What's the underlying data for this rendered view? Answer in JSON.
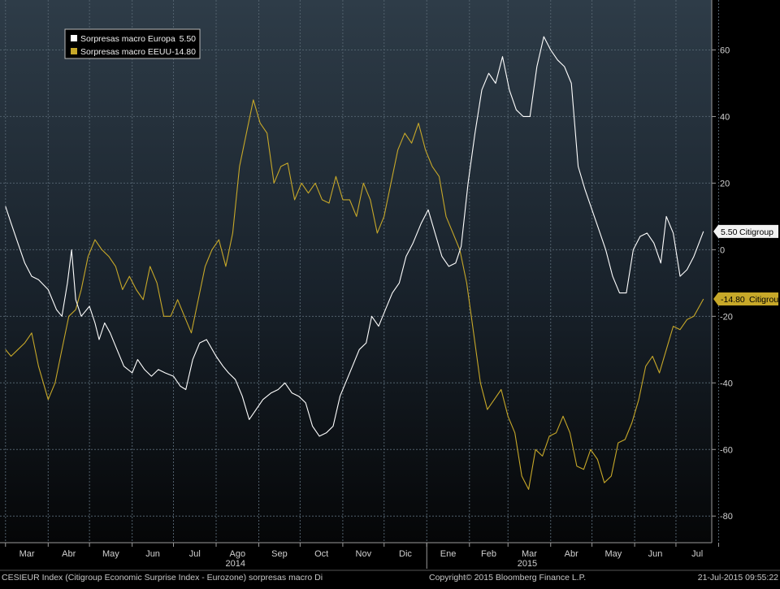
{
  "chart_data": {
    "type": "line",
    "ylim": [
      -88,
      75
    ],
    "yticks": [
      60,
      40,
      20,
      0,
      -20,
      -40,
      -60,
      -80
    ],
    "grid": true,
    "legend_position": "top-left",
    "x_month_labels": [
      "Mar",
      "Abr",
      "May",
      "Jun",
      "Jul",
      "Ago",
      "Sep",
      "Oct",
      "Nov",
      "Dic",
      "Ene",
      "Feb",
      "Mar",
      "Abr",
      "May",
      "Jun",
      "Jul"
    ],
    "year_labels": [
      "2014",
      "2015"
    ],
    "series": [
      {
        "name": "Sorpresas macro Europa",
        "legend_value": "5.50",
        "tag_value": "5.50",
        "tag_text": "Citigroup",
        "color": "#ffffff",
        "points": [
          [
            "2014-03-01",
            13
          ],
          [
            "2014-03-05",
            8
          ],
          [
            "2014-03-10",
            2
          ],
          [
            "2014-03-15",
            -4
          ],
          [
            "2014-03-20",
            -8
          ],
          [
            "2014-03-25",
            -9
          ],
          [
            "2014-04-01",
            -12
          ],
          [
            "2014-04-07",
            -18
          ],
          [
            "2014-04-11",
            -20
          ],
          [
            "2014-04-15",
            -10
          ],
          [
            "2014-04-18",
            0
          ],
          [
            "2014-04-21",
            -15
          ],
          [
            "2014-04-25",
            -20
          ],
          [
            "2014-05-01",
            -17
          ],
          [
            "2014-05-05",
            -22
          ],
          [
            "2014-05-08",
            -27
          ],
          [
            "2014-05-12",
            -22
          ],
          [
            "2014-05-16",
            -25
          ],
          [
            "2014-05-21",
            -30
          ],
          [
            "2014-05-26",
            -35
          ],
          [
            "2014-06-01",
            -37
          ],
          [
            "2014-06-05",
            -33
          ],
          [
            "2014-06-10",
            -36
          ],
          [
            "2014-06-15",
            -38
          ],
          [
            "2014-06-20",
            -36
          ],
          [
            "2014-06-25",
            -37
          ],
          [
            "2014-07-01",
            -38
          ],
          [
            "2014-07-06",
            -41
          ],
          [
            "2014-07-10",
            -42
          ],
          [
            "2014-07-15",
            -33
          ],
          [
            "2014-07-20",
            -28
          ],
          [
            "2014-07-25",
            -27
          ],
          [
            "2014-08-01",
            -32
          ],
          [
            "2014-08-06",
            -35
          ],
          [
            "2014-08-10",
            -37
          ],
          [
            "2014-08-15",
            -39
          ],
          [
            "2014-08-20",
            -44
          ],
          [
            "2014-08-25",
            -51
          ],
          [
            "2014-08-30",
            -48
          ],
          [
            "2014-09-04",
            -45
          ],
          [
            "2014-09-10",
            -43
          ],
          [
            "2014-09-15",
            -42
          ],
          [
            "2014-09-20",
            -40
          ],
          [
            "2014-09-25",
            -43
          ],
          [
            "2014-09-30",
            -44
          ],
          [
            "2014-10-05",
            -46
          ],
          [
            "2014-10-10",
            -53
          ],
          [
            "2014-10-15",
            -56
          ],
          [
            "2014-10-20",
            -55
          ],
          [
            "2014-10-25",
            -53
          ],
          [
            "2014-10-30",
            -44
          ],
          [
            "2014-11-03",
            -40
          ],
          [
            "2014-11-08",
            -35
          ],
          [
            "2014-11-13",
            -30
          ],
          [
            "2014-11-18",
            -28
          ],
          [
            "2014-11-22",
            -20
          ],
          [
            "2014-11-27",
            -23
          ],
          [
            "2014-12-02",
            -18
          ],
          [
            "2014-12-07",
            -13
          ],
          [
            "2014-12-12",
            -10
          ],
          [
            "2014-12-17",
            -2
          ],
          [
            "2014-12-22",
            2
          ],
          [
            "2014-12-28",
            8
          ],
          [
            "2015-01-02",
            12
          ],
          [
            "2015-01-07",
            5
          ],
          [
            "2015-01-12",
            -2
          ],
          [
            "2015-01-17",
            -5
          ],
          [
            "2015-01-22",
            -4
          ],
          [
            "2015-01-26",
            1
          ],
          [
            "2015-01-31",
            20
          ],
          [
            "2015-02-05",
            35
          ],
          [
            "2015-02-10",
            48
          ],
          [
            "2015-02-15",
            53
          ],
          [
            "2015-02-20",
            50
          ],
          [
            "2015-02-25",
            58
          ],
          [
            "2015-03-02",
            48
          ],
          [
            "2015-03-07",
            42
          ],
          [
            "2015-03-12",
            40
          ],
          [
            "2015-03-17",
            40
          ],
          [
            "2015-03-22",
            55
          ],
          [
            "2015-03-27",
            64
          ],
          [
            "2015-04-01",
            60
          ],
          [
            "2015-04-06",
            57
          ],
          [
            "2015-04-11",
            55
          ],
          [
            "2015-04-16",
            50
          ],
          [
            "2015-04-21",
            25
          ],
          [
            "2015-04-26",
            18
          ],
          [
            "2015-05-01",
            12
          ],
          [
            "2015-05-06",
            6
          ],
          [
            "2015-05-11",
            0
          ],
          [
            "2015-05-16",
            -8
          ],
          [
            "2015-05-21",
            -13
          ],
          [
            "2015-05-26",
            -13
          ],
          [
            "2015-05-31",
            0
          ],
          [
            "2015-06-05",
            4
          ],
          [
            "2015-06-10",
            5
          ],
          [
            "2015-06-15",
            2
          ],
          [
            "2015-06-20",
            -4
          ],
          [
            "2015-06-24",
            10
          ],
          [
            "2015-06-29",
            5
          ],
          [
            "2015-07-04",
            -8
          ],
          [
            "2015-07-09",
            -6
          ],
          [
            "2015-07-14",
            -2
          ],
          [
            "2015-07-21",
            5.5
          ]
        ]
      },
      {
        "name": "Sorpresas macro EEUU",
        "legend_value": "-14.80",
        "tag_value": "-14.80",
        "tag_text": "Citigroup",
        "color": "#c7a829",
        "points": [
          [
            "2014-03-01",
            -30
          ],
          [
            "2014-03-05",
            -32
          ],
          [
            "2014-03-10",
            -30
          ],
          [
            "2014-03-15",
            -28
          ],
          [
            "2014-03-20",
            -25
          ],
          [
            "2014-03-25",
            -35
          ],
          [
            "2014-04-01",
            -45
          ],
          [
            "2014-04-06",
            -40
          ],
          [
            "2014-04-11",
            -30
          ],
          [
            "2014-04-16",
            -20
          ],
          [
            "2014-04-21",
            -18
          ],
          [
            "2014-04-25",
            -12
          ],
          [
            "2014-04-30",
            -2
          ],
          [
            "2014-05-05",
            3
          ],
          [
            "2014-05-10",
            0
          ],
          [
            "2014-05-15",
            -2
          ],
          [
            "2014-05-20",
            -5
          ],
          [
            "2014-05-25",
            -12
          ],
          [
            "2014-05-30",
            -8
          ],
          [
            "2014-06-04",
            -12
          ],
          [
            "2014-06-09",
            -15
          ],
          [
            "2014-06-14",
            -5
          ],
          [
            "2014-06-19",
            -10
          ],
          [
            "2014-06-24",
            -20
          ],
          [
            "2014-06-29",
            -20
          ],
          [
            "2014-07-04",
            -15
          ],
          [
            "2014-07-09",
            -20
          ],
          [
            "2014-07-14",
            -25
          ],
          [
            "2014-07-19",
            -15
          ],
          [
            "2014-07-24",
            -5
          ],
          [
            "2014-07-29",
            0
          ],
          [
            "2014-08-03",
            3
          ],
          [
            "2014-08-08",
            -5
          ],
          [
            "2014-08-13",
            5
          ],
          [
            "2014-08-18",
            25
          ],
          [
            "2014-08-23",
            35
          ],
          [
            "2014-08-28",
            45
          ],
          [
            "2014-09-02",
            38
          ],
          [
            "2014-09-07",
            35
          ],
          [
            "2014-09-12",
            20
          ],
          [
            "2014-09-17",
            25
          ],
          [
            "2014-09-22",
            26
          ],
          [
            "2014-09-27",
            15
          ],
          [
            "2014-10-02",
            20
          ],
          [
            "2014-10-07",
            17
          ],
          [
            "2014-10-12",
            20
          ],
          [
            "2014-10-17",
            15
          ],
          [
            "2014-10-22",
            14
          ],
          [
            "2014-10-27",
            22
          ],
          [
            "2014-11-01",
            15
          ],
          [
            "2014-11-06",
            15
          ],
          [
            "2014-11-11",
            10
          ],
          [
            "2014-11-16",
            20
          ],
          [
            "2014-11-21",
            15
          ],
          [
            "2014-11-26",
            5
          ],
          [
            "2014-12-01",
            10
          ],
          [
            "2014-12-06",
            20
          ],
          [
            "2014-12-11",
            30
          ],
          [
            "2014-12-16",
            35
          ],
          [
            "2014-12-21",
            32
          ],
          [
            "2014-12-26",
            38
          ],
          [
            "2014-12-31",
            30
          ],
          [
            "2015-01-05",
            25
          ],
          [
            "2015-01-10",
            22
          ],
          [
            "2015-01-15",
            10
          ],
          [
            "2015-01-20",
            5
          ],
          [
            "2015-01-25",
            0
          ],
          [
            "2015-01-30",
            -10
          ],
          [
            "2015-02-04",
            -25
          ],
          [
            "2015-02-09",
            -40
          ],
          [
            "2015-02-14",
            -48
          ],
          [
            "2015-02-19",
            -45
          ],
          [
            "2015-02-24",
            -42
          ],
          [
            "2015-03-01",
            -50
          ],
          [
            "2015-03-06",
            -55
          ],
          [
            "2015-03-11",
            -68
          ],
          [
            "2015-03-16",
            -72
          ],
          [
            "2015-03-21",
            -60
          ],
          [
            "2015-03-26",
            -62
          ],
          [
            "2015-03-31",
            -56
          ],
          [
            "2015-04-05",
            -55
          ],
          [
            "2015-04-10",
            -50
          ],
          [
            "2015-04-15",
            -55
          ],
          [
            "2015-04-20",
            -65
          ],
          [
            "2015-04-25",
            -66
          ],
          [
            "2015-04-30",
            -60
          ],
          [
            "2015-05-05",
            -63
          ],
          [
            "2015-05-10",
            -70
          ],
          [
            "2015-05-15",
            -68
          ],
          [
            "2015-05-20",
            -58
          ],
          [
            "2015-05-25",
            -57
          ],
          [
            "2015-05-30",
            -52
          ],
          [
            "2015-06-04",
            -45
          ],
          [
            "2015-06-09",
            -35
          ],
          [
            "2015-06-14",
            -32
          ],
          [
            "2015-06-19",
            -37
          ],
          [
            "2015-06-24",
            -30
          ],
          [
            "2015-06-29",
            -23
          ],
          [
            "2015-07-04",
            -24
          ],
          [
            "2015-07-09",
            -21
          ],
          [
            "2015-07-14",
            -20
          ],
          [
            "2015-07-21",
            -14.8
          ]
        ]
      }
    ]
  },
  "footer": {
    "left": "CESIEUR Index (Citigroup Economic Surprise Index - Eurozone) sorpresas macro  Di",
    "center": "Copyright© 2015 Bloomberg Finance L.P.",
    "right": "21-Jul-2015 09:55:22"
  }
}
